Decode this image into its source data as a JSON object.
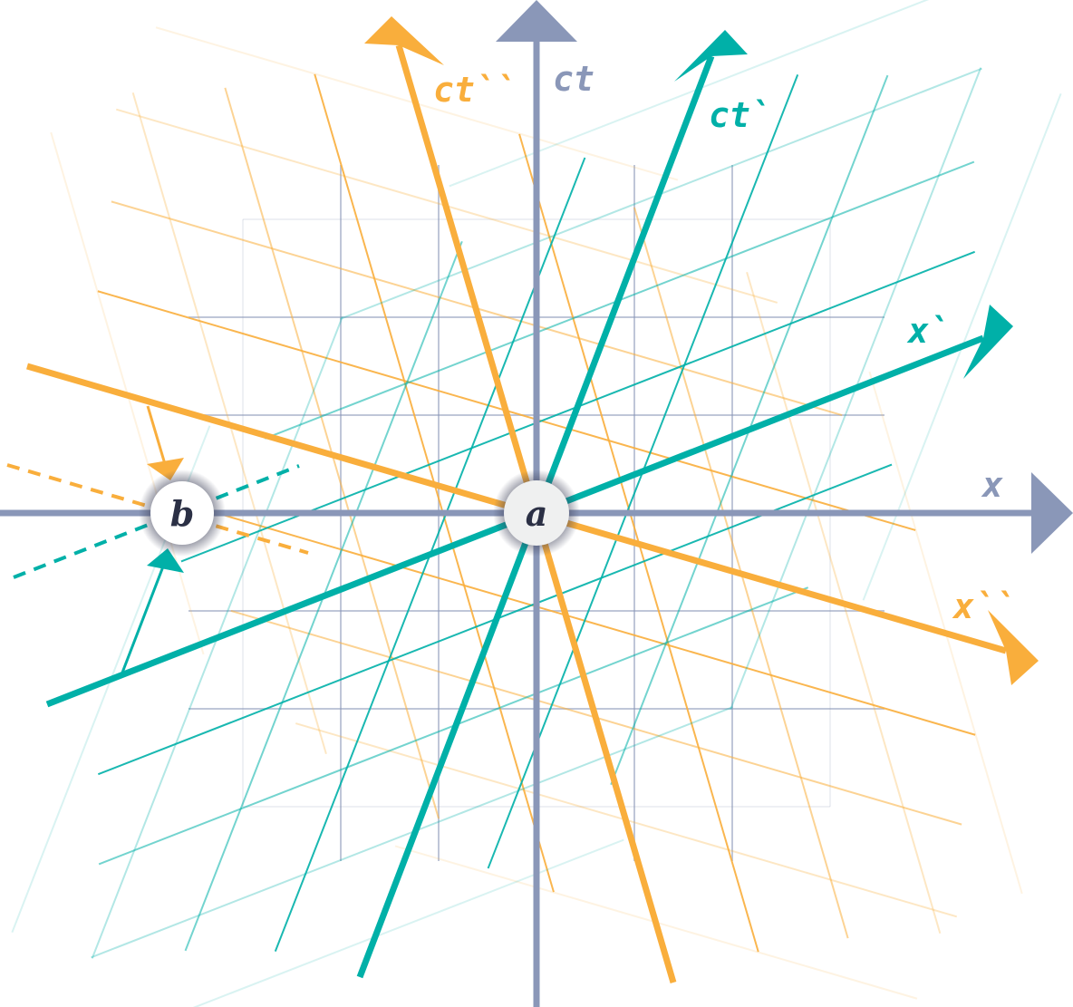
{
  "colors": {
    "rest_frame": "#8a97b8",
    "frame_prime": "#00b0a8",
    "frame_double_prime": "#f9ae3c",
    "event_fill": "#ffffff",
    "event_text": "#2b3045"
  },
  "axes": {
    "rest": {
      "time_label": "ct",
      "space_label": "x"
    },
    "prime": {
      "time_label": "ct`",
      "space_label": "x`"
    },
    "double_prime": {
      "time_label": "ct``",
      "space_label": "x``"
    }
  },
  "events": {
    "a": "a",
    "b": "b"
  }
}
